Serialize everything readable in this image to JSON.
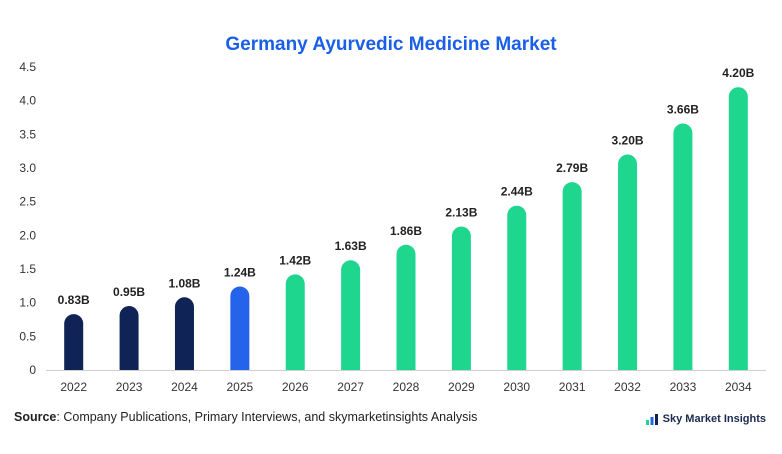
{
  "chart_data": {
    "type": "bar",
    "title": "Germany Ayurvedic Medicine Market",
    "categories": [
      "2022",
      "2023",
      "2024",
      "2025",
      "2026",
      "2027",
      "2028",
      "2029",
      "2030",
      "2031",
      "2032",
      "2033",
      "2034"
    ],
    "values": [
      0.83,
      0.95,
      1.08,
      1.24,
      1.42,
      1.63,
      1.86,
      2.13,
      2.44,
      2.79,
      3.2,
      3.66,
      4.2
    ],
    "data_labels": [
      "0.83B",
      "0.95B",
      "1.08B",
      "1.24B",
      "1.42B",
      "1.63B",
      "1.86B",
      "2.13B",
      "2.44B",
      "2.79B",
      "3.20B",
      "3.66B",
      "4.20B"
    ],
    "yticks": [
      "0",
      "0.5",
      "1.0",
      "1.5",
      "2.0",
      "2.5",
      "3.0",
      "3.5",
      "4.0",
      "4.5"
    ],
    "ylim": [
      0,
      4.5
    ],
    "xlabel": "",
    "ylabel": "",
    "grid": false,
    "colors": {
      "historical": "#0f2356",
      "base": "#2563eb",
      "forecast": "#1fd68f"
    },
    "bar_color_groups": [
      "historical",
      "historical",
      "historical",
      "base",
      "forecast",
      "forecast",
      "forecast",
      "forecast",
      "forecast",
      "forecast",
      "forecast",
      "forecast",
      "forecast"
    ]
  },
  "footer": {
    "source_label": "Source",
    "source_text": ": Company Publications, Primary Interviews, and skymarketinsights Analysis",
    "brand_name": "Sky Market Insights",
    "brand_icon": "chart-logo-icon"
  }
}
